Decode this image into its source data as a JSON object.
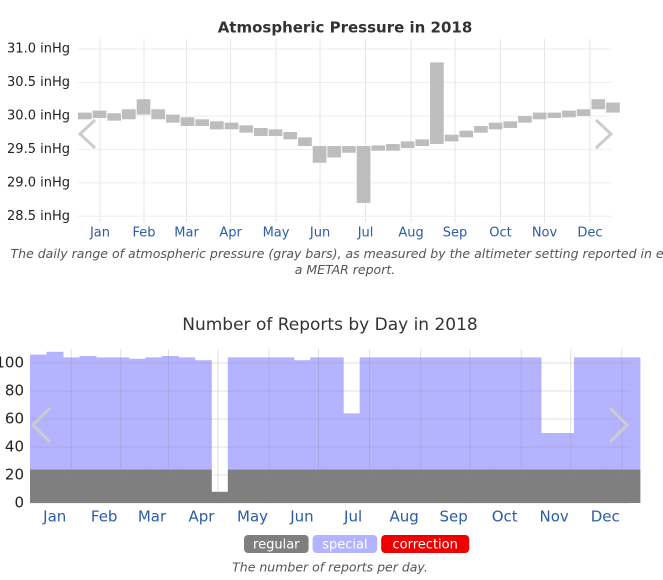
{
  "chart_data": [
    {
      "type": "range-bar",
      "title": "Atmospheric Pressure in 2018",
      "caption": "The daily range of atmospheric pressure (gray bars), as measured by the altimeter setting reported in e.g. a METAR report.",
      "color": "#bdbdbd",
      "x": [
        1,
        11,
        21,
        31,
        41,
        51,
        61,
        71,
        81,
        91,
        101,
        111,
        121,
        131,
        141,
        151,
        161,
        171,
        181,
        191,
        201,
        211,
        221,
        231,
        241,
        251,
        261,
        271,
        281,
        291,
        301,
        311,
        321,
        331,
        341,
        351,
        361
      ],
      "low": [
        29.95,
        29.97,
        29.93,
        29.95,
        30.02,
        29.95,
        29.9,
        29.85,
        29.85,
        29.8,
        29.8,
        29.75,
        29.7,
        29.7,
        29.65,
        29.55,
        29.3,
        29.38,
        29.45,
        28.7,
        29.48,
        29.48,
        29.52,
        29.55,
        29.58,
        29.62,
        29.68,
        29.75,
        29.8,
        29.82,
        29.9,
        29.95,
        29.97,
        29.98,
        30.0,
        30.1,
        30.05
      ],
      "high": [
        30.05,
        30.08,
        30.04,
        30.1,
        30.25,
        30.1,
        30.02,
        29.98,
        29.95,
        29.92,
        29.9,
        29.86,
        29.82,
        29.8,
        29.76,
        29.68,
        29.55,
        29.55,
        29.55,
        29.55,
        29.56,
        29.58,
        29.62,
        29.65,
        30.8,
        29.72,
        29.78,
        29.85,
        29.9,
        29.92,
        30.0,
        30.05,
        30.05,
        30.08,
        30.1,
        30.25,
        30.2
      ],
      "xlim": [
        1,
        365
      ],
      "xticks": [
        {
          "value": 16,
          "label": "Jan"
        },
        {
          "value": 46,
          "label": "Feb"
        },
        {
          "value": 75,
          "label": "Mar"
        },
        {
          "value": 105,
          "label": "Apr"
        },
        {
          "value": 136,
          "label": "May"
        },
        {
          "value": 166,
          "label": "Jun"
        },
        {
          "value": 197,
          "label": "Jul"
        },
        {
          "value": 228,
          "label": "Aug"
        },
        {
          "value": 258,
          "label": "Sep"
        },
        {
          "value": 289,
          "label": "Oct"
        },
        {
          "value": 319,
          "label": "Nov"
        },
        {
          "value": 350,
          "label": "Dec"
        }
      ],
      "ylim": [
        28.4,
        31.15
      ],
      "yticks": [
        {
          "value": 28.5,
          "label": "28.5 inHg"
        },
        {
          "value": 29.0,
          "label": "29.0 inHg"
        },
        {
          "value": 29.5,
          "label": "29.5 inHg"
        },
        {
          "value": 30.0,
          "label": "30.0 inHg"
        },
        {
          "value": 30.5,
          "label": "30.5 inHg"
        },
        {
          "value": 31.0,
          "label": "31.0 inHg"
        }
      ],
      "grid": true
    },
    {
      "type": "stacked-bar",
      "title": "Number of Reports by Day in 2018",
      "caption": "The number of reports per day.",
      "x": [
        1,
        11,
        21,
        31,
        41,
        51,
        61,
        71,
        81,
        91,
        101,
        111,
        121,
        131,
        141,
        151,
        161,
        171,
        181,
        191,
        201,
        211,
        221,
        231,
        241,
        251,
        261,
        271,
        281,
        291,
        301,
        311,
        321,
        331,
        341,
        351,
        361
      ],
      "series": [
        {
          "name": "regular",
          "color": "#7f7f7f",
          "values": [
            24,
            24,
            24,
            24,
            24,
            24,
            24,
            24,
            24,
            24,
            24,
            8,
            24,
            24,
            24,
            24,
            24,
            24,
            24,
            24,
            24,
            24,
            24,
            24,
            24,
            24,
            24,
            24,
            24,
            24,
            24,
            24,
            24,
            24,
            24,
            24,
            24
          ]
        },
        {
          "name": "special",
          "color": "#b3b3ff",
          "values": [
            82,
            84,
            80,
            81,
            80,
            80,
            79,
            80,
            81,
            80,
            78,
            0,
            80,
            80,
            80,
            80,
            78,
            80,
            80,
            40,
            80,
            80,
            80,
            80,
            80,
            80,
            80,
            80,
            80,
            80,
            80,
            26,
            26,
            80,
            80,
            80,
            80
          ]
        },
        {
          "name": "correction",
          "color": "#ee0000",
          "values": [
            0,
            0,
            0,
            0,
            0,
            0,
            0,
            0,
            0,
            0,
            0,
            0,
            0,
            0,
            0,
            0,
            0,
            0,
            0,
            0,
            0,
            0,
            0,
            0,
            0,
            0,
            0,
            0,
            0,
            0,
            0,
            0,
            0,
            0,
            0,
            0,
            0
          ]
        }
      ],
      "xlim": [
        1,
        365
      ],
      "xticks": [
        {
          "value": 16,
          "label": "Jan"
        },
        {
          "value": 46,
          "label": "Feb"
        },
        {
          "value": 75,
          "label": "Mar"
        },
        {
          "value": 105,
          "label": "Apr"
        },
        {
          "value": 136,
          "label": "May"
        },
        {
          "value": 166,
          "label": "Jun"
        },
        {
          "value": 197,
          "label": "Jul"
        },
        {
          "value": 228,
          "label": "Aug"
        },
        {
          "value": 258,
          "label": "Sep"
        },
        {
          "value": 289,
          "label": "Oct"
        },
        {
          "value": 319,
          "label": "Nov"
        },
        {
          "value": 350,
          "label": "Dec"
        }
      ],
      "ylim": [
        0,
        110
      ],
      "yticks": [
        0,
        20,
        40,
        60,
        80,
        100
      ],
      "grid": true
    }
  ]
}
